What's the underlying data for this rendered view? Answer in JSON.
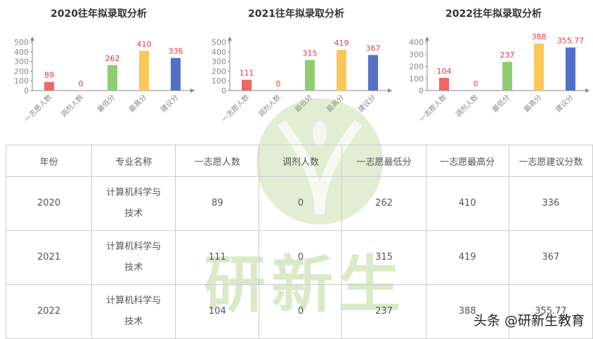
{
  "chart_data": [
    {
      "type": "bar",
      "title": "2020往年拟录取分析",
      "categories": [
        "一志愿人数",
        "调剂人数",
        "最低分",
        "最高分",
        "建议分"
      ],
      "values": [
        89,
        0,
        262,
        410,
        336
      ],
      "colors": [
        "#ee6666",
        "#ee6666",
        "#91cc75",
        "#fac858",
        "#5470c6"
      ],
      "yticks": [
        0,
        100,
        200,
        300,
        400,
        500
      ],
      "ylim": [
        0,
        500
      ],
      "xlabel": "",
      "ylabel": "",
      "grid": false
    },
    {
      "type": "bar",
      "title": "2021往年拟录取分析",
      "categories": [
        "一志愿人数",
        "调剂人数",
        "最低分",
        "最高分",
        "建议分"
      ],
      "values": [
        111,
        0,
        315,
        419,
        367
      ],
      "colors": [
        "#ee6666",
        "#ee6666",
        "#91cc75",
        "#fac858",
        "#5470c6"
      ],
      "yticks": [
        0,
        100,
        200,
        300,
        400,
        500
      ],
      "ylim": [
        0,
        500
      ],
      "xlabel": "",
      "ylabel": "",
      "grid": false
    },
    {
      "type": "bar",
      "title": "2022往年拟录取分析",
      "categories": [
        "一志愿人数",
        "调剂人数",
        "最低分",
        "最高分",
        "建议分"
      ],
      "values": [
        104,
        0,
        237,
        388,
        355.77
      ],
      "colors": [
        "#ee6666",
        "#ee6666",
        "#91cc75",
        "#fac858",
        "#5470c6"
      ],
      "yticks": [
        0,
        100,
        200,
        300,
        400
      ],
      "ylim": [
        0,
        400
      ],
      "xlabel": "",
      "ylabel": "",
      "grid": false
    }
  ],
  "table": {
    "headers": [
      "年份",
      "专业名称",
      "一志愿人数",
      "调剂人数",
      "一志愿最低分",
      "一志愿最高分",
      "一志愿建议分数"
    ],
    "rows": [
      [
        "2020",
        "计算机科学与技术",
        "89",
        "0",
        "262",
        "410",
        "336"
      ],
      [
        "2021",
        "计算机科学与技术",
        "111",
        "0",
        "315",
        "419",
        "367"
      ],
      [
        "2022",
        "计算机科学与技术",
        "104",
        "0",
        "237",
        "388",
        "355.77"
      ]
    ]
  },
  "watermark": {
    "text": "研新生"
  },
  "corner_credit": "头条 @研新生教育"
}
